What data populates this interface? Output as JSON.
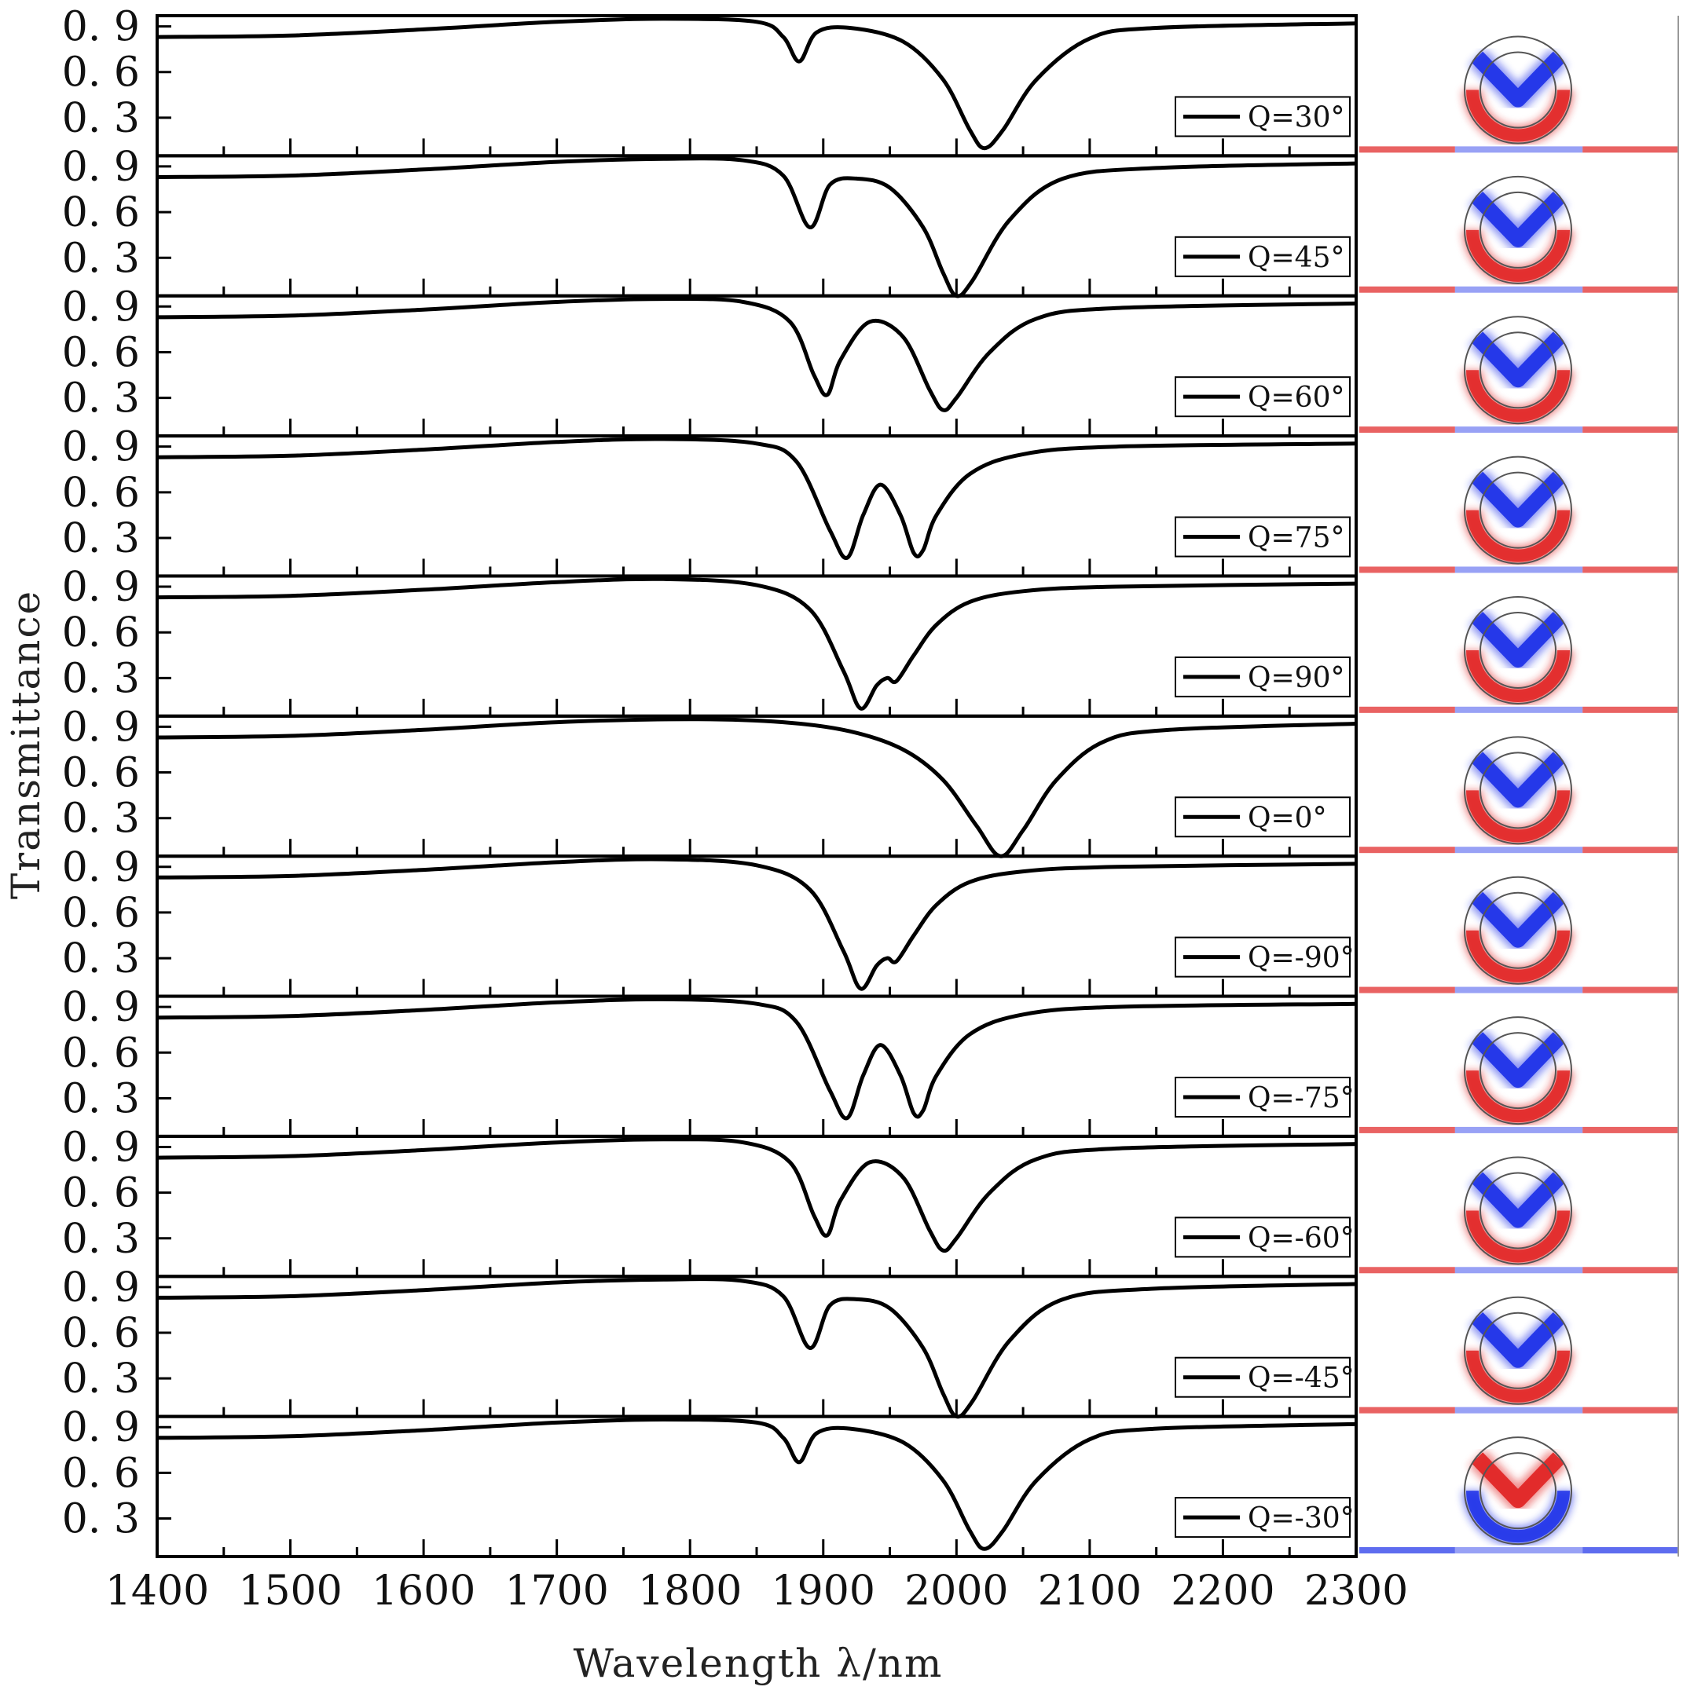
{
  "chart_data": {
    "type": "line",
    "title": "",
    "xlabel": "Wavelength λ/nm",
    "ylabel": "Transmittance",
    "xlim": [
      1400,
      2300
    ],
    "ylim": [
      0.05,
      0.97
    ],
    "xticks": [
      "1400",
      "1500",
      "1600",
      "1700",
      "1800",
      "1900",
      "2000",
      "2100",
      "2200",
      "2300"
    ],
    "yticks": [
      "0. 9",
      "0. 6",
      "0. 3"
    ],
    "ytick_values": [
      0.9,
      0.6,
      0.3
    ],
    "legend_location": "center-right",
    "line_color": "#000000",
    "field_colors": {
      "positive": "#e02020",
      "negative": "#1a2ee8"
    },
    "panels": [
      {
        "label": "Q=30°",
        "x": [
          1400,
          1500,
          1600,
          1700,
          1780,
          1850,
          1870,
          1882,
          1895,
          1920,
          1960,
          1990,
          2010,
          2021,
          2035,
          2060,
          2100,
          2150,
          2300
        ],
        "y": [
          0.83,
          0.84,
          0.88,
          0.93,
          0.95,
          0.93,
          0.83,
          0.67,
          0.86,
          0.89,
          0.8,
          0.55,
          0.22,
          0.1,
          0.22,
          0.55,
          0.82,
          0.89,
          0.92
        ]
      },
      {
        "label": "Q=45°",
        "x": [
          1400,
          1500,
          1600,
          1700,
          1780,
          1840,
          1870,
          1890,
          1905,
          1925,
          1950,
          1975,
          1990,
          2000,
          2012,
          2040,
          2080,
          2150,
          2300
        ],
        "y": [
          0.83,
          0.84,
          0.88,
          0.93,
          0.95,
          0.94,
          0.84,
          0.5,
          0.78,
          0.82,
          0.76,
          0.5,
          0.2,
          0.05,
          0.15,
          0.55,
          0.82,
          0.89,
          0.92
        ]
      },
      {
        "label": "Q=60°",
        "x": [
          1400,
          1500,
          1600,
          1700,
          1780,
          1840,
          1875,
          1893,
          1903,
          1913,
          1935,
          1960,
          1980,
          1990,
          2000,
          2025,
          2060,
          2120,
          2300
        ],
        "y": [
          0.83,
          0.84,
          0.88,
          0.93,
          0.95,
          0.93,
          0.8,
          0.45,
          0.32,
          0.55,
          0.8,
          0.7,
          0.35,
          0.22,
          0.3,
          0.6,
          0.82,
          0.89,
          0.92
        ]
      },
      {
        "label": "Q=75°",
        "x": [
          1400,
          1500,
          1600,
          1700,
          1780,
          1850,
          1880,
          1905,
          1918,
          1930,
          1943,
          1958,
          1968,
          1975,
          1985,
          2010,
          2050,
          2120,
          2300
        ],
        "y": [
          0.83,
          0.84,
          0.88,
          0.93,
          0.95,
          0.92,
          0.8,
          0.35,
          0.17,
          0.45,
          0.65,
          0.45,
          0.2,
          0.22,
          0.45,
          0.72,
          0.85,
          0.9,
          0.92
        ]
      },
      {
        "label": "Q=90°",
        "x": [
          1400,
          1500,
          1600,
          1700,
          1780,
          1850,
          1890,
          1915,
          1928,
          1940,
          1948,
          1955,
          1968,
          1985,
          2010,
          2050,
          2120,
          2300
        ],
        "y": [
          0.83,
          0.84,
          0.88,
          0.93,
          0.95,
          0.91,
          0.75,
          0.35,
          0.1,
          0.25,
          0.3,
          0.28,
          0.45,
          0.65,
          0.8,
          0.87,
          0.9,
          0.92
        ]
      },
      {
        "label": "Q=0°",
        "x": [
          1400,
          1500,
          1600,
          1700,
          1800,
          1870,
          1920,
          1960,
          1990,
          2015,
          2033,
          2050,
          2075,
          2110,
          2160,
          2300
        ],
        "y": [
          0.83,
          0.84,
          0.88,
          0.93,
          0.95,
          0.93,
          0.87,
          0.75,
          0.55,
          0.25,
          0.05,
          0.22,
          0.55,
          0.8,
          0.88,
          0.92
        ]
      },
      {
        "label": "Q=-90°",
        "x": [
          1400,
          1500,
          1600,
          1700,
          1780,
          1850,
          1890,
          1915,
          1928,
          1940,
          1948,
          1955,
          1968,
          1985,
          2010,
          2050,
          2120,
          2300
        ],
        "y": [
          0.83,
          0.84,
          0.88,
          0.93,
          0.95,
          0.91,
          0.75,
          0.35,
          0.1,
          0.25,
          0.3,
          0.28,
          0.45,
          0.65,
          0.8,
          0.87,
          0.9,
          0.92
        ]
      },
      {
        "label": "Q=-75°",
        "x": [
          1400,
          1500,
          1600,
          1700,
          1780,
          1850,
          1880,
          1905,
          1918,
          1930,
          1943,
          1958,
          1968,
          1975,
          1985,
          2010,
          2050,
          2120,
          2300
        ],
        "y": [
          0.83,
          0.84,
          0.88,
          0.93,
          0.95,
          0.92,
          0.8,
          0.35,
          0.17,
          0.45,
          0.65,
          0.45,
          0.2,
          0.22,
          0.45,
          0.72,
          0.85,
          0.9,
          0.92
        ]
      },
      {
        "label": "Q=-60°",
        "x": [
          1400,
          1500,
          1600,
          1700,
          1780,
          1840,
          1875,
          1893,
          1903,
          1913,
          1935,
          1960,
          1980,
          1990,
          2000,
          2025,
          2060,
          2120,
          2300
        ],
        "y": [
          0.83,
          0.84,
          0.88,
          0.93,
          0.95,
          0.93,
          0.8,
          0.45,
          0.32,
          0.55,
          0.8,
          0.7,
          0.35,
          0.22,
          0.3,
          0.6,
          0.82,
          0.89,
          0.92
        ]
      },
      {
        "label": "Q=-45°",
        "x": [
          1400,
          1500,
          1600,
          1700,
          1780,
          1840,
          1870,
          1890,
          1905,
          1925,
          1950,
          1975,
          1990,
          2000,
          2012,
          2040,
          2080,
          2150,
          2300
        ],
        "y": [
          0.83,
          0.84,
          0.88,
          0.93,
          0.95,
          0.94,
          0.84,
          0.5,
          0.78,
          0.82,
          0.76,
          0.5,
          0.2,
          0.05,
          0.15,
          0.55,
          0.82,
          0.89,
          0.92
        ]
      },
      {
        "label": "Q=-30°",
        "x": [
          1400,
          1500,
          1600,
          1700,
          1780,
          1850,
          1870,
          1882,
          1895,
          1920,
          1960,
          1990,
          2010,
          2021,
          2035,
          2060,
          2100,
          2150,
          2300
        ],
        "y": [
          0.83,
          0.84,
          0.88,
          0.93,
          0.95,
          0.93,
          0.83,
          0.67,
          0.86,
          0.89,
          0.8,
          0.55,
          0.22,
          0.1,
          0.22,
          0.55,
          0.82,
          0.89,
          0.92
        ]
      }
    ],
    "field_maps": [
      {
        "v_color": "negative",
        "ring_color": "positive",
        "line_colors": [
          "positive",
          "negative",
          "positive"
        ]
      },
      {
        "v_color": "negative",
        "ring_color": "positive",
        "line_colors": [
          "positive",
          "negative",
          "positive"
        ]
      },
      {
        "v_color": "negative",
        "ring_color": "positive",
        "line_colors": [
          "positive",
          "negative",
          "positive"
        ]
      },
      {
        "v_color": "negative",
        "ring_color": "positive",
        "line_colors": [
          "positive",
          "negative",
          "positive"
        ]
      },
      {
        "v_color": "negative",
        "ring_color": "positive",
        "line_colors": [
          "positive",
          "negative",
          "positive"
        ]
      },
      {
        "v_color": "negative",
        "ring_color": "positive",
        "line_colors": [
          "positive",
          "negative",
          "positive"
        ]
      },
      {
        "v_color": "negative",
        "ring_color": "positive",
        "line_colors": [
          "positive",
          "negative",
          "positive"
        ]
      },
      {
        "v_color": "negative",
        "ring_color": "positive",
        "line_colors": [
          "positive",
          "negative",
          "positive"
        ]
      },
      {
        "v_color": "negative",
        "ring_color": "positive",
        "line_colors": [
          "positive",
          "negative",
          "positive"
        ]
      },
      {
        "v_color": "negative",
        "ring_color": "positive",
        "line_colors": [
          "positive",
          "negative",
          "positive"
        ]
      },
      {
        "v_color": "positive",
        "ring_color": "negative",
        "line_colors": [
          "negative",
          "negative",
          "negative"
        ]
      }
    ]
  }
}
